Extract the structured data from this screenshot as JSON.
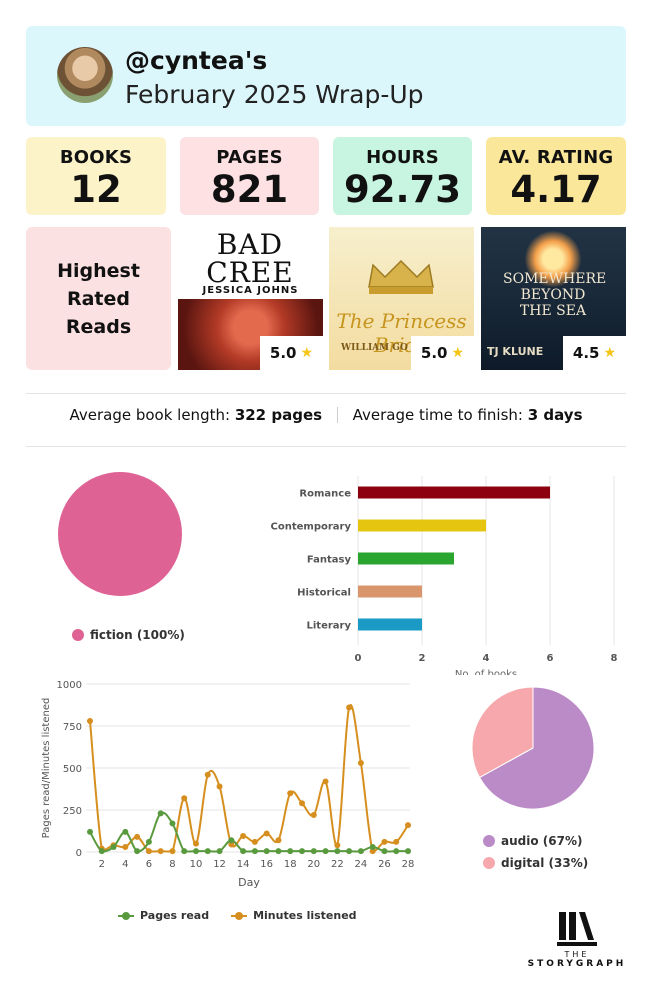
{
  "header": {
    "handle": "@cyntea's",
    "subtitle": "February 2025 Wrap-Up"
  },
  "stats": [
    {
      "label": "BOOKS",
      "value": "12",
      "color": "#fcf3c9"
    },
    {
      "label": "PAGES",
      "value": "821",
      "color": "#fde1e3"
    },
    {
      "label": "HOURS",
      "value": "92.73",
      "color": "#c8f5e1"
    },
    {
      "label": "AV. RATING",
      "value": "4.17",
      "color": "#fbe79a"
    }
  ],
  "highest_rated": {
    "label": "Highest Rated Reads",
    "books": [
      {
        "title": "BAD CREE",
        "author": "JESSICA JOHNS",
        "rating": "5.0"
      },
      {
        "title": "The Princess Bride",
        "author": "WILLIAM GO",
        "rating": "5.0"
      },
      {
        "title": "SOMEWHERE BEYOND THE SEA",
        "author": "TJ KLUNE",
        "rating": "4.5"
      }
    ]
  },
  "averages": {
    "length_label": "Average book length:",
    "length_value": "322 pages",
    "finish_label": "Average time to finish:",
    "finish_value": "3 days"
  },
  "chart_data": [
    {
      "type": "pie",
      "slices": [
        {
          "label": "fiction (100%)",
          "value": 100,
          "color": "#de6394"
        }
      ]
    },
    {
      "type": "bar",
      "orientation": "horizontal",
      "categories": [
        "Romance",
        "Contemporary",
        "Fantasy",
        "Historical",
        "Literary"
      ],
      "values": [
        6,
        4,
        3,
        2,
        2
      ],
      "colors": [
        "#8c0010",
        "#e6c510",
        "#2aa52f",
        "#d9956b",
        "#1a9ac4"
      ],
      "xlabel": "No. of books",
      "xlim": [
        0,
        8
      ],
      "xticks": [
        "0",
        "2",
        "4",
        "6",
        "8"
      ],
      "grid": true
    },
    {
      "type": "line",
      "xlabel": "Day",
      "ylabel": "Pages read/Minutes listened",
      "ylim": [
        0,
        1000
      ],
      "yticks": [
        "0",
        "250",
        "500",
        "750",
        "1000"
      ],
      "xticks": [
        "2",
        "4",
        "6",
        "8",
        "10",
        "12",
        "14",
        "16",
        "18",
        "20",
        "22",
        "24",
        "26",
        "28"
      ],
      "x": [
        1,
        2,
        3,
        4,
        5,
        6,
        7,
        8,
        9,
        10,
        11,
        12,
        13,
        14,
        15,
        16,
        17,
        18,
        19,
        20,
        21,
        22,
        23,
        24,
        25,
        26,
        27,
        28
      ],
      "series": [
        {
          "name": "Pages read",
          "color": "#5a9a3e",
          "values": [
            120,
            5,
            30,
            120,
            5,
            60,
            230,
            170,
            5,
            5,
            5,
            5,
            70,
            5,
            5,
            5,
            5,
            5,
            5,
            5,
            5,
            5,
            5,
            5,
            30,
            5,
            5,
            5
          ]
        },
        {
          "name": "Minutes listened",
          "color": "#d68f1e",
          "values": [
            780,
            20,
            40,
            30,
            90,
            5,
            5,
            5,
            320,
            50,
            460,
            390,
            45,
            95,
            60,
            110,
            70,
            350,
            290,
            220,
            420,
            40,
            860,
            530,
            5,
            60,
            60,
            160
          ]
        }
      ],
      "legend": "bottom"
    },
    {
      "type": "pie",
      "slices": [
        {
          "label": "audio (67%)",
          "value": 67,
          "color": "#bb8bc7"
        },
        {
          "label": "digital (33%)",
          "value": 33,
          "color": "#f7a8ac"
        }
      ]
    }
  ],
  "brand": {
    "the": "THE",
    "name": "STORYGRAPH"
  }
}
